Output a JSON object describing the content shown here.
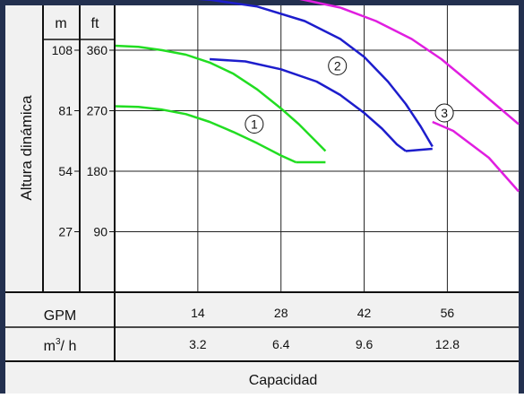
{
  "colors": {
    "frame": "#23304f",
    "panel_bg": "#f1f1f1",
    "grid": "#222222",
    "series_1": "#22dd22",
    "series_2": "#1d1dcc",
    "series_3": "#e01ee0"
  },
  "chart_data": {
    "type": "line",
    "title": "",
    "ylabel": "Altura dinámica",
    "xlabel": "Capacidad",
    "grid": true,
    "x_units": "GPM",
    "xlim": [
      0,
      68
    ],
    "ylim": [
      0,
      128
    ],
    "y_units": {
      "m": {
        "label": "m",
        "ticks": [
          108,
          81,
          54,
          27
        ]
      },
      "ft": {
        "label": "ft",
        "ticks": [
          360,
          270,
          180,
          90
        ]
      }
    },
    "x_axes": [
      {
        "label": "GPM",
        "ticks": [
          14,
          28,
          42,
          56
        ]
      },
      {
        "label": "m³/ h",
        "label_base": "m",
        "label_sup": "3",
        "label_rest": "/ h",
        "ticks": [
          "3.2",
          "6.4",
          "9.6",
          "12.8"
        ]
      }
    ],
    "curve_labels": [
      "1",
      "2",
      "3"
    ],
    "series": [
      {
        "label": "1",
        "color": "#22dd22",
        "upper": [
          [
            0,
            110
          ],
          [
            4,
            109.5
          ],
          [
            8,
            108
          ],
          [
            12,
            106
          ],
          [
            16,
            102.5
          ],
          [
            20,
            97.5
          ],
          [
            24,
            90.5
          ],
          [
            28,
            82
          ],
          [
            31,
            75
          ],
          [
            34,
            67
          ],
          [
            35.5,
            63
          ]
        ],
        "lower": [
          [
            0,
            83
          ],
          [
            4,
            82.7
          ],
          [
            8,
            81.5
          ],
          [
            12,
            79.5
          ],
          [
            16,
            76
          ],
          [
            20,
            71.5
          ],
          [
            24,
            66.5
          ],
          [
            28,
            61
          ],
          [
            30.5,
            58
          ]
        ],
        "bottom": [
          [
            30.5,
            58
          ],
          [
            35.5,
            58
          ]
        ],
        "label_at": [
          23.5,
          75
        ]
      },
      {
        "label": "2",
        "color": "#1d1dcc",
        "upper": [
          [
            0,
            133
          ],
          [
            8,
            132
          ],
          [
            16,
            130.5
          ],
          [
            24,
            127.5
          ],
          [
            32,
            121
          ],
          [
            38,
            113
          ],
          [
            42,
            105
          ],
          [
            46,
            94
          ],
          [
            49,
            84
          ],
          [
            51.5,
            74
          ],
          [
            53.5,
            65
          ]
        ],
        "lower": [
          [
            16,
            104
          ],
          [
            22,
            103
          ],
          [
            28,
            99.5
          ],
          [
            34,
            94
          ],
          [
            38,
            88
          ],
          [
            42,
            80
          ],
          [
            45,
            73
          ],
          [
            47.5,
            66
          ],
          [
            49,
            63
          ]
        ],
        "bottom": [
          [
            49,
            63
          ],
          [
            53.5,
            64
          ]
        ],
        "label_at": [
          37.5,
          101
        ]
      },
      {
        "label": "3",
        "color": "#e01ee0",
        "upper": [
          [
            0,
            135
          ],
          [
            10,
            134.8
          ],
          [
            20,
            134
          ],
          [
            30,
            131.5
          ],
          [
            38,
            127
          ],
          [
            44,
            121
          ],
          [
            50,
            113
          ],
          [
            55,
            104
          ],
          [
            60,
            93
          ],
          [
            64,
            84
          ],
          [
            68,
            75
          ]
        ],
        "lower": [
          [
            53.5,
            76
          ],
          [
            57,
            72
          ],
          [
            60,
            66
          ],
          [
            63,
            60
          ],
          [
            66,
            51
          ],
          [
            68,
            45
          ]
        ],
        "label_at": [
          55.5,
          80
        ]
      }
    ]
  }
}
